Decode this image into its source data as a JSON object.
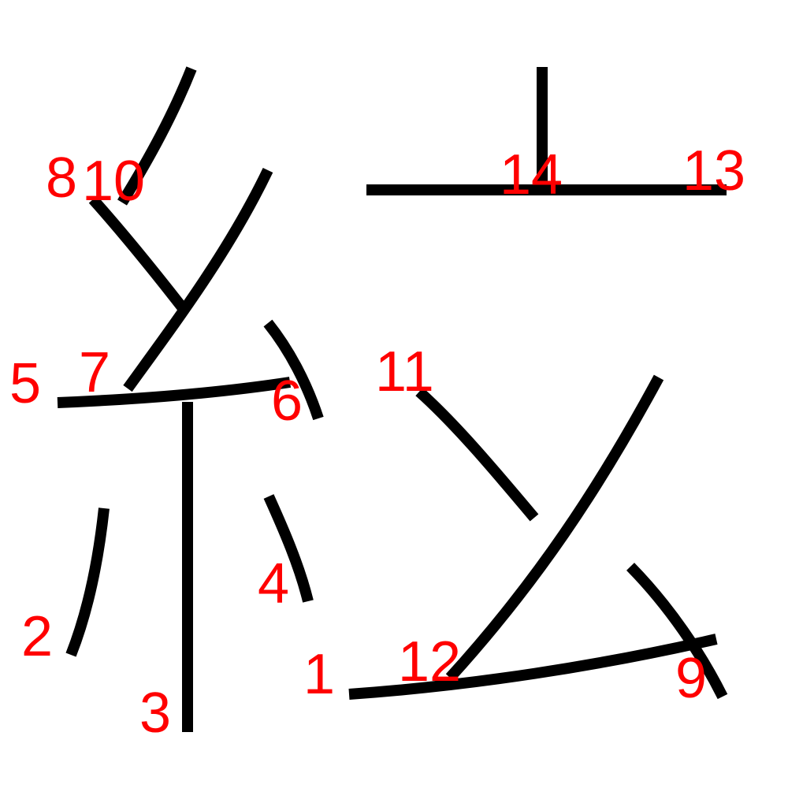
{
  "colors": {
    "background": "#ffffff",
    "stroke": "#000000",
    "label": "#ff0000"
  },
  "strokes": [
    {
      "id": "s1",
      "label": "1"
    },
    {
      "id": "s2",
      "label": "2"
    },
    {
      "id": "s3",
      "label": "3"
    },
    {
      "id": "s4",
      "label": "4"
    },
    {
      "id": "s5",
      "label": "5"
    },
    {
      "id": "s6",
      "label": "6"
    },
    {
      "id": "s7",
      "label": "7"
    },
    {
      "id": "s8",
      "label": "8"
    },
    {
      "id": "s9",
      "label": "9"
    },
    {
      "id": "s10",
      "label": "10"
    },
    {
      "id": "s11",
      "label": "11"
    },
    {
      "id": "s12",
      "label": "12"
    },
    {
      "id": "s13",
      "label": "13"
    },
    {
      "id": "s14",
      "label": "14"
    }
  ]
}
